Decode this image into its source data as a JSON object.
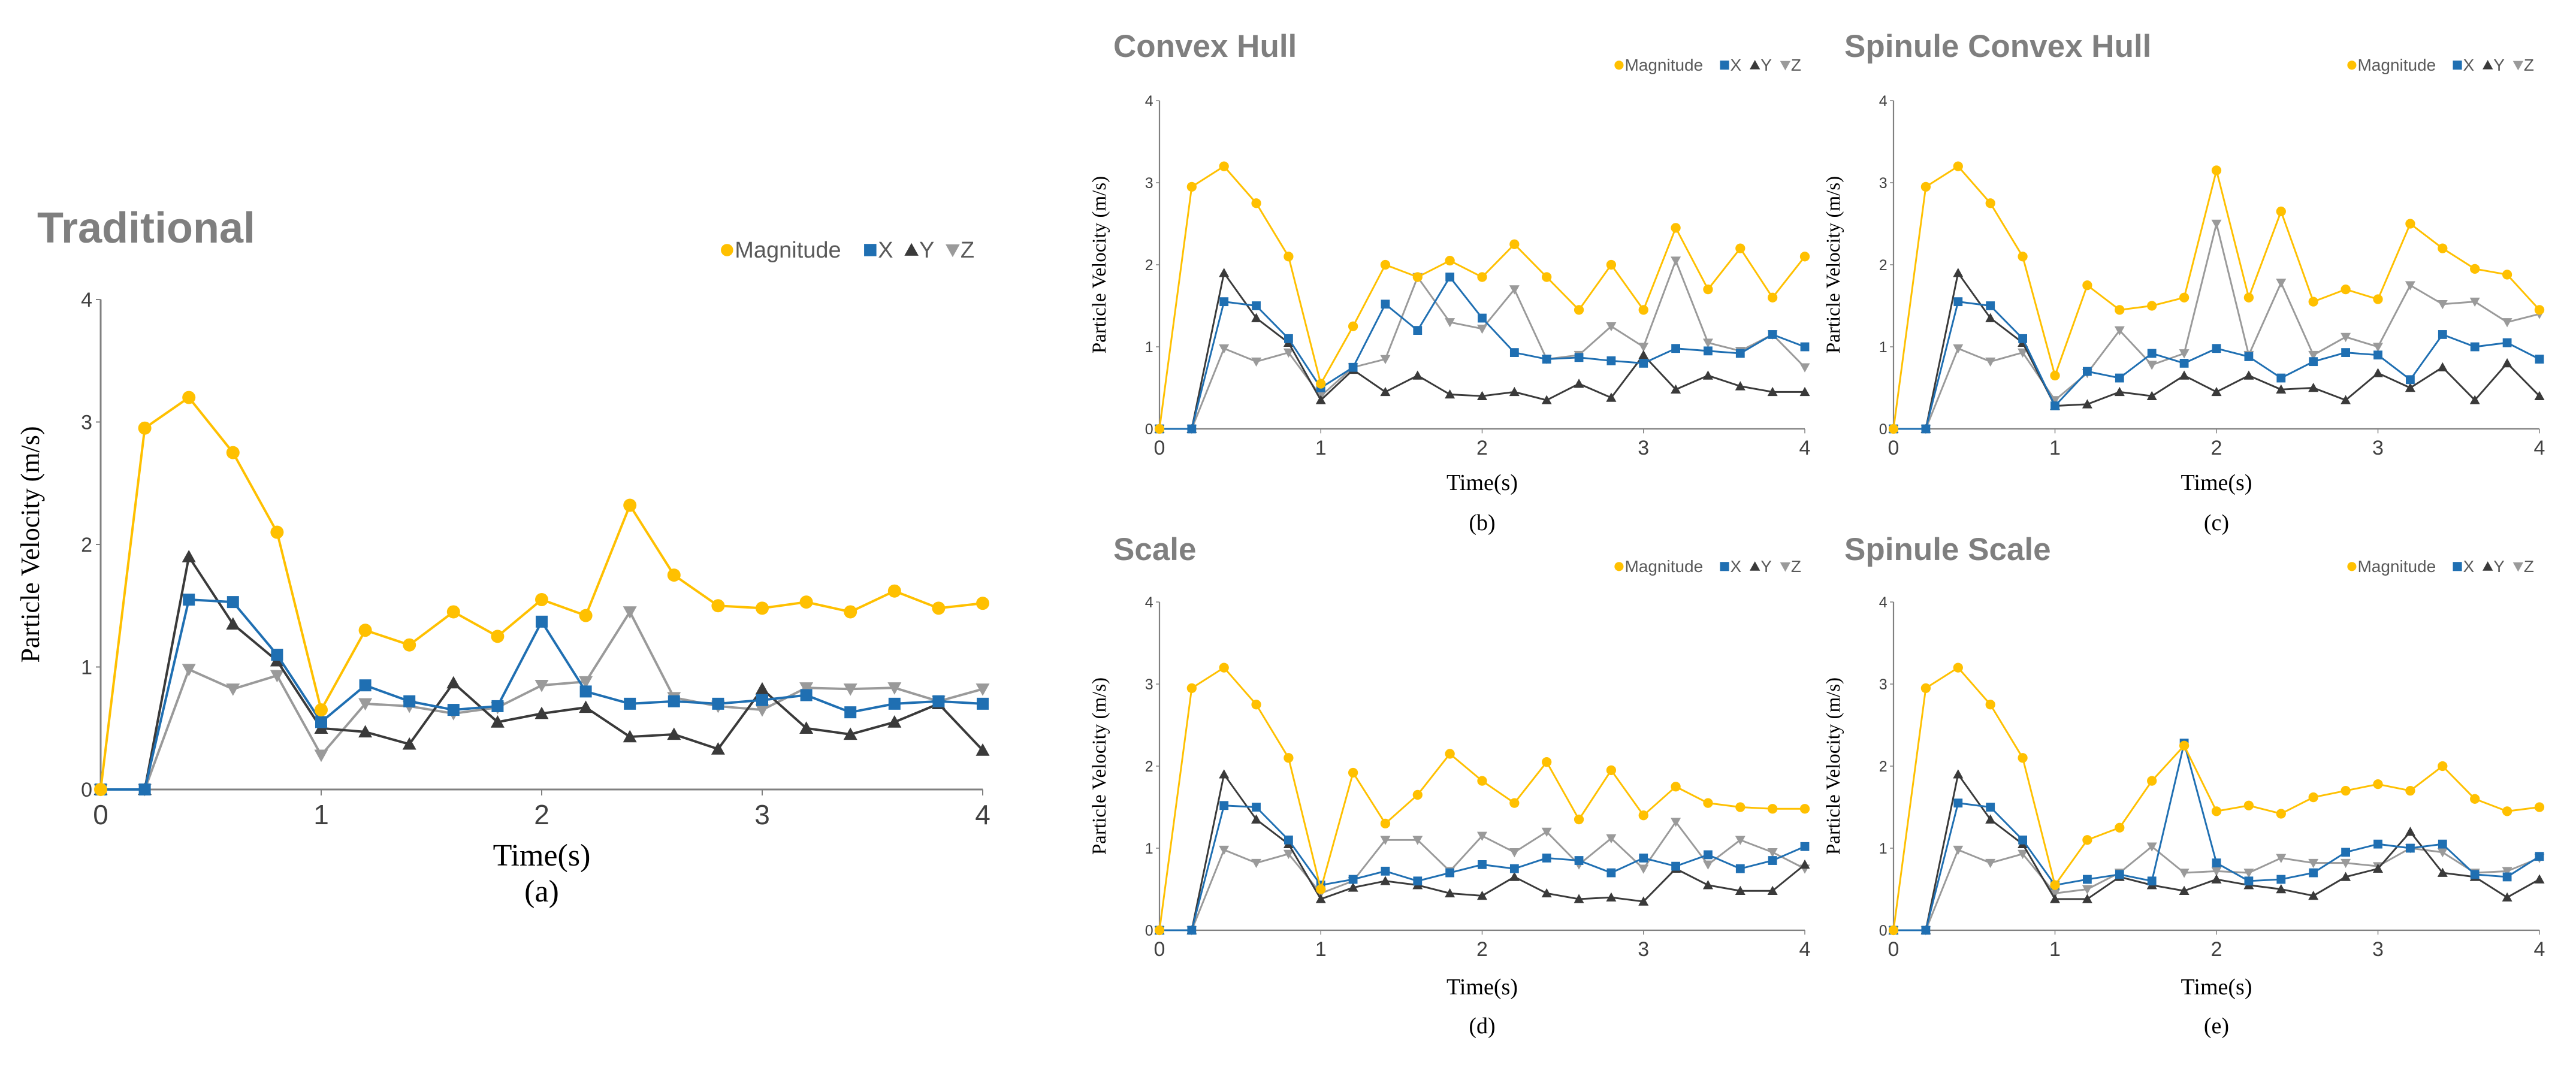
{
  "colors": {
    "magnitude": "#ffc000",
    "x": "#1f6fb2",
    "y": "#3a3a3a",
    "z": "#9a9a9a",
    "axis": "#808080",
    "title": "#7f7f7f"
  },
  "legend": {
    "magnitude": "Magnitude",
    "x": "X",
    "y": "Y",
    "z": "Z"
  },
  "chart_data": [
    {
      "id": "a",
      "type": "line",
      "title": "Traditional",
      "caption": "(a)",
      "xlabel": "Time(s)",
      "ylabel": "Particle Velocity (m/s)",
      "xlim": [
        0,
        4
      ],
      "ylim": [
        0,
        4
      ],
      "xticks": [
        "0",
        "1",
        "2",
        "3",
        "4"
      ],
      "yticks": [
        "0",
        "1",
        "2",
        "3",
        "4"
      ],
      "x": [
        0,
        0.2,
        0.4,
        0.6,
        0.8,
        1.0,
        1.2,
        1.4,
        1.6,
        1.8,
        2.0,
        2.2,
        2.4,
        2.6,
        2.8,
        3.0,
        3.2,
        3.4,
        3.6,
        3.8,
        4.0
      ],
      "series": [
        {
          "name": "Magnitude",
          "key": "magnitude",
          "marker": "circle",
          "values": [
            0,
            2.95,
            3.2,
            2.75,
            2.1,
            0.65,
            1.3,
            1.18,
            1.45,
            1.25,
            1.55,
            1.42,
            2.32,
            1.75,
            1.5,
            1.48,
            1.53,
            1.45,
            1.62,
            1.48,
            1.52
          ]
        },
        {
          "name": "X",
          "key": "x",
          "marker": "square",
          "values": [
            0,
            0,
            1.55,
            1.53,
            1.1,
            0.55,
            0.85,
            0.72,
            0.65,
            0.68,
            1.37,
            0.8,
            0.7,
            0.72,
            0.7,
            0.73,
            0.77,
            0.63,
            0.7,
            0.72,
            0.7
          ]
        },
        {
          "name": "Y",
          "key": "y",
          "marker": "triangle-up",
          "values": [
            0,
            0,
            1.9,
            1.35,
            1.05,
            0.5,
            0.47,
            0.37,
            0.87,
            0.55,
            0.62,
            0.67,
            0.43,
            0.45,
            0.33,
            0.82,
            0.5,
            0.45,
            0.55,
            0.7,
            0.32
          ]
        },
        {
          "name": "Z",
          "key": "z",
          "marker": "triangle-down",
          "values": [
            0,
            0,
            0.98,
            0.82,
            0.93,
            0.28,
            0.7,
            0.68,
            0.62,
            0.67,
            0.85,
            0.88,
            1.45,
            0.75,
            0.68,
            0.65,
            0.83,
            0.82,
            0.83,
            0.72,
            0.82
          ]
        }
      ]
    },
    {
      "id": "b",
      "type": "line",
      "title": "Convex Hull",
      "caption": "(b)",
      "xlabel": "Time(s)",
      "ylabel": "Particle Velocity (m/s)",
      "xlim": [
        0,
        4
      ],
      "ylim": [
        0,
        4
      ],
      "xticks": [
        "0",
        "1",
        "2",
        "3",
        "4"
      ],
      "yticks": [
        "0",
        "1",
        "2",
        "3",
        "4"
      ],
      "x": [
        0,
        0.2,
        0.4,
        0.6,
        0.8,
        1.0,
        1.2,
        1.4,
        1.6,
        1.8,
        2.0,
        2.2,
        2.4,
        2.6,
        2.8,
        3.0,
        3.2,
        3.4,
        3.6,
        3.8,
        4.0
      ],
      "series": [
        {
          "name": "Magnitude",
          "key": "magnitude",
          "marker": "circle",
          "values": [
            0,
            2.95,
            3.2,
            2.75,
            2.1,
            0.55,
            1.25,
            2.0,
            1.85,
            2.05,
            1.85,
            2.25,
            1.85,
            1.45,
            2.0,
            1.45,
            2.45,
            1.7,
            2.2,
            1.6,
            2.1
          ]
        },
        {
          "name": "X",
          "key": "x",
          "marker": "square",
          "values": [
            0,
            0,
            1.55,
            1.5,
            1.1,
            0.5,
            0.75,
            1.52,
            1.2,
            1.85,
            1.35,
            0.93,
            0.85,
            0.87,
            0.83,
            0.8,
            0.98,
            0.95,
            0.92,
            1.15,
            1.0
          ]
        },
        {
          "name": "Y",
          "key": "y",
          "marker": "triangle-up",
          "values": [
            0,
            0,
            1.9,
            1.35,
            1.05,
            0.35,
            0.72,
            0.45,
            0.65,
            0.42,
            0.4,
            0.45,
            0.35,
            0.55,
            0.38,
            0.9,
            0.48,
            0.65,
            0.52,
            0.45,
            0.45
          ]
        },
        {
          "name": "Z",
          "key": "z",
          "marker": "triangle-down",
          "values": [
            0,
            0,
            0.98,
            0.82,
            0.93,
            0.4,
            0.75,
            0.85,
            1.85,
            1.3,
            1.22,
            1.7,
            0.85,
            0.9,
            1.25,
            1.0,
            2.05,
            1.05,
            0.95,
            1.15,
            0.75
          ]
        }
      ]
    },
    {
      "id": "c",
      "type": "line",
      "title": "Spinule Convex Hull",
      "caption": "(c)",
      "xlabel": "Time(s)",
      "ylabel": "Particle Velocity (m/s)",
      "xlim": [
        0,
        4
      ],
      "ylim": [
        0,
        4
      ],
      "xticks": [
        "0",
        "1",
        "2",
        "3",
        "4"
      ],
      "yticks": [
        "0",
        "1",
        "2",
        "3",
        "4"
      ],
      "x": [
        0,
        0.2,
        0.4,
        0.6,
        0.8,
        1.0,
        1.2,
        1.4,
        1.6,
        1.8,
        2.0,
        2.2,
        2.4,
        2.6,
        2.8,
        3.0,
        3.2,
        3.4,
        3.6,
        3.8,
        4.0
      ],
      "series": [
        {
          "name": "Magnitude",
          "key": "magnitude",
          "marker": "circle",
          "values": [
            0,
            2.95,
            3.2,
            2.75,
            2.1,
            0.65,
            1.75,
            1.45,
            1.5,
            1.6,
            3.15,
            1.6,
            2.65,
            1.55,
            1.7,
            1.58,
            2.5,
            2.2,
            1.95,
            1.88,
            1.45
          ]
        },
        {
          "name": "X",
          "key": "x",
          "marker": "square",
          "values": [
            0,
            0,
            1.55,
            1.5,
            1.1,
            0.28,
            0.7,
            0.62,
            0.92,
            0.8,
            0.98,
            0.88,
            0.62,
            0.82,
            0.93,
            0.9,
            0.6,
            1.15,
            1.0,
            1.05,
            0.85
          ]
        },
        {
          "name": "Y",
          "key": "y",
          "marker": "triangle-up",
          "values": [
            0,
            0,
            1.9,
            1.35,
            1.05,
            0.28,
            0.3,
            0.45,
            0.4,
            0.65,
            0.45,
            0.65,
            0.48,
            0.5,
            0.35,
            0.68,
            0.5,
            0.75,
            0.35,
            0.8,
            0.4
          ]
        },
        {
          "name": "Z",
          "key": "z",
          "marker": "triangle-down",
          "values": [
            0,
            0,
            0.98,
            0.82,
            0.93,
            0.35,
            0.68,
            1.2,
            0.78,
            0.92,
            2.5,
            0.9,
            1.78,
            0.9,
            1.12,
            1.0,
            1.75,
            1.52,
            1.55,
            1.3,
            1.4
          ]
        }
      ]
    },
    {
      "id": "d",
      "type": "line",
      "title": "Scale",
      "caption": "(d)",
      "xlabel": "Time(s)",
      "ylabel": "Particle Velocity (m/s)",
      "xlim": [
        0,
        4
      ],
      "ylim": [
        0,
        4
      ],
      "xticks": [
        "0",
        "1",
        "2",
        "3",
        "4"
      ],
      "yticks": [
        "0",
        "1",
        "2",
        "3",
        "4"
      ],
      "x": [
        0,
        0.2,
        0.4,
        0.6,
        0.8,
        1.0,
        1.2,
        1.4,
        1.6,
        1.8,
        2.0,
        2.2,
        2.4,
        2.6,
        2.8,
        3.0,
        3.2,
        3.4,
        3.6,
        3.8,
        4.0
      ],
      "series": [
        {
          "name": "Magnitude",
          "key": "magnitude",
          "marker": "circle",
          "values": [
            0,
            2.95,
            3.2,
            2.75,
            2.1,
            0.5,
            1.92,
            1.3,
            1.65,
            2.15,
            1.82,
            1.55,
            2.05,
            1.35,
            1.95,
            1.4,
            1.75,
            1.55,
            1.5,
            1.48,
            1.48
          ]
        },
        {
          "name": "X",
          "key": "x",
          "marker": "square",
          "values": [
            0,
            0,
            1.52,
            1.5,
            1.1,
            0.55,
            0.62,
            0.72,
            0.6,
            0.7,
            0.8,
            0.75,
            0.88,
            0.85,
            0.7,
            0.88,
            0.78,
            0.92,
            0.75,
            0.85,
            1.02
          ]
        },
        {
          "name": "Y",
          "key": "y",
          "marker": "triangle-up",
          "values": [
            0,
            0,
            1.9,
            1.35,
            1.05,
            0.38,
            0.52,
            0.6,
            0.55,
            0.45,
            0.42,
            0.65,
            0.45,
            0.38,
            0.4,
            0.35,
            0.75,
            0.55,
            0.48,
            0.48,
            0.8
          ]
        },
        {
          "name": "Z",
          "key": "z",
          "marker": "triangle-down",
          "values": [
            0,
            0,
            0.98,
            0.82,
            0.93,
            0.45,
            0.6,
            1.1,
            1.1,
            0.72,
            1.15,
            0.95,
            1.2,
            0.8,
            1.12,
            0.75,
            1.32,
            0.8,
            1.1,
            0.95,
            0.75
          ]
        }
      ]
    },
    {
      "id": "e",
      "type": "line",
      "title": "Spinule Scale",
      "caption": "(e)",
      "xlabel": "Time(s)",
      "ylabel": "Particle Velocity (m/s)",
      "xlim": [
        0,
        4
      ],
      "ylim": [
        0,
        4
      ],
      "xticks": [
        "0",
        "1",
        "2",
        "3",
        "4"
      ],
      "yticks": [
        "0",
        "1",
        "2",
        "3",
        "4"
      ],
      "x": [
        0,
        0.2,
        0.4,
        0.6,
        0.8,
        1.0,
        1.2,
        1.4,
        1.6,
        1.8,
        2.0,
        2.2,
        2.4,
        2.6,
        2.8,
        3.0,
        3.2,
        3.4,
        3.6,
        3.8,
        4.0
      ],
      "series": [
        {
          "name": "Magnitude",
          "key": "magnitude",
          "marker": "circle",
          "values": [
            0,
            2.95,
            3.2,
            2.75,
            2.1,
            0.55,
            1.1,
            1.25,
            1.82,
            2.25,
            1.45,
            1.52,
            1.42,
            1.62,
            1.7,
            1.78,
            1.7,
            2.0,
            1.6,
            1.45,
            1.5
          ]
        },
        {
          "name": "X",
          "key": "x",
          "marker": "square",
          "values": [
            0,
            0,
            1.55,
            1.5,
            1.1,
            0.55,
            0.62,
            0.68,
            0.6,
            2.28,
            0.82,
            0.6,
            0.62,
            0.7,
            0.95,
            1.05,
            1.0,
            1.05,
            0.68,
            0.65,
            0.9
          ]
        },
        {
          "name": "Y",
          "key": "y",
          "marker": "triangle-up",
          "values": [
            0,
            0,
            1.9,
            1.35,
            1.05,
            0.38,
            0.38,
            0.65,
            0.55,
            0.48,
            0.62,
            0.55,
            0.5,
            0.42,
            0.65,
            0.75,
            1.2,
            0.7,
            0.65,
            0.4,
            0.62
          ]
        },
        {
          "name": "Z",
          "key": "z",
          "marker": "triangle-down",
          "values": [
            0,
            0,
            0.98,
            0.82,
            0.93,
            0.45,
            0.5,
            0.7,
            1.02,
            0.7,
            0.72,
            0.7,
            0.88,
            0.82,
            0.82,
            0.78,
            1.0,
            0.95,
            0.7,
            0.72,
            0.88
          ]
        }
      ]
    }
  ]
}
